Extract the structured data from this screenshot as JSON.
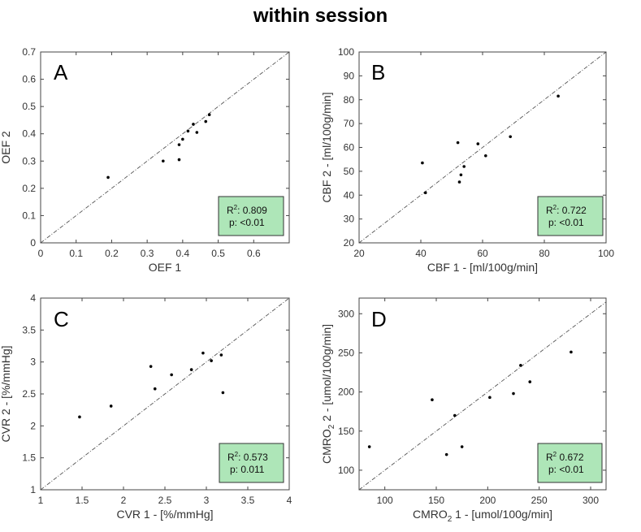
{
  "figure_title": "within session",
  "colors": {
    "annotation_fill": "#aee6b8",
    "point": "#000000",
    "identity_line": "#555555",
    "axis": "#444444",
    "text": "#333333"
  },
  "chart_data": [
    {
      "id": "A",
      "panel_label": "A",
      "type": "scatter",
      "title": "",
      "xlabel": "OEF 1",
      "ylabel": "OEF 2",
      "xlim": [
        0,
        0.7
      ],
      "ylim": [
        0,
        0.7
      ],
      "xticks": [
        0,
        0.1,
        0.2,
        0.3,
        0.4,
        0.5,
        0.6
      ],
      "yticks": [
        0,
        0.1,
        0.2,
        0.3,
        0.4,
        0.5,
        0.6,
        0.7
      ],
      "xtick_labels": [
        "0",
        "0.1",
        "0.2",
        "0.3",
        "0.4",
        "0.5",
        "0.6"
      ],
      "ytick_labels": [
        "0",
        "0.1",
        "0.2",
        "0.3",
        "0.4",
        "0.5",
        "0.6",
        "0.7"
      ],
      "identity_line": true,
      "x": [
        0.19,
        0.345,
        0.39,
        0.39,
        0.4,
        0.415,
        0.43,
        0.44,
        0.465,
        0.475
      ],
      "y": [
        0.24,
        0.3,
        0.305,
        0.36,
        0.38,
        0.41,
        0.435,
        0.405,
        0.445,
        0.47
      ],
      "annotation": {
        "r2_label": "R",
        "r2_sup": "2",
        "r2_value": ": 0.809",
        "p_text": "p: <0.01"
      }
    },
    {
      "id": "B",
      "panel_label": "B",
      "type": "scatter",
      "title": "",
      "xlabel": "CBF 1 - [ml/100g/min]",
      "ylabel": "CBF 2 - [ml/100g/min]",
      "xlim": [
        20,
        100
      ],
      "ylim": [
        20,
        100
      ],
      "xticks": [
        20,
        40,
        60,
        80,
        100
      ],
      "yticks": [
        20,
        30,
        40,
        50,
        60,
        70,
        80,
        90,
        100
      ],
      "xtick_labels": [
        "20",
        "40",
        "60",
        "80",
        "100"
      ],
      "ytick_labels": [
        "20",
        "30",
        "40",
        "50",
        "60",
        "70",
        "80",
        "90",
        "100"
      ],
      "identity_line": true,
      "x": [
        40.5,
        41.5,
        52,
        52.5,
        53,
        54,
        58.5,
        61,
        69,
        84.5
      ],
      "y": [
        53.5,
        41,
        62,
        45.5,
        48.5,
        52,
        61.5,
        56.5,
        64.5,
        81.5
      ],
      "annotation": {
        "r2_label": "R",
        "r2_sup": "2",
        "r2_value": ": 0.722",
        "p_text": "p: <0.01"
      }
    },
    {
      "id": "C",
      "panel_label": "C",
      "type": "scatter",
      "title": "",
      "xlabel": "CVR 1 - [%/mmHg]",
      "ylabel": "CVR 2 - [%/mmHg]",
      "xlim": [
        1,
        4
      ],
      "ylim": [
        1,
        4
      ],
      "xticks": [
        1,
        1.5,
        2,
        2.5,
        3,
        3.5,
        4
      ],
      "yticks": [
        1,
        1.5,
        2,
        2.5,
        3,
        3.5,
        4
      ],
      "xtick_labels": [
        "1",
        "1.5",
        "2",
        "2.5",
        "3",
        "3.5",
        "4"
      ],
      "ytick_labels": [
        "1",
        "1.5",
        "2",
        "2.5",
        "3",
        "3.5",
        "4"
      ],
      "identity_line": true,
      "x": [
        1.47,
        1.85,
        2.33,
        2.38,
        2.58,
        2.82,
        2.96,
        3.06,
        3.18,
        3.2
      ],
      "y": [
        2.14,
        2.31,
        2.93,
        2.58,
        2.8,
        2.88,
        3.14,
        3.02,
        3.11,
        2.52
      ],
      "annotation": {
        "r2_label": "R",
        "r2_sup": "2",
        "r2_value": ": 0.573",
        "p_text": "p: 0.011"
      }
    },
    {
      "id": "D",
      "panel_label": "D",
      "type": "scatter",
      "title": "",
      "xlabel_main": "CMRO",
      "xlabel_sub": "2",
      "xlabel_rest": " 1 - [umol/100g/min]",
      "ylabel_main": "CMRO",
      "ylabel_sub": "2",
      "ylabel_rest": " 2 -  [umol/100g/min]",
      "xlim": [
        75,
        315
      ],
      "ylim": [
        75,
        320
      ],
      "xticks": [
        100,
        150,
        200,
        250,
        300
      ],
      "yticks": [
        100,
        150,
        200,
        250,
        300
      ],
      "xtick_labels": [
        "100",
        "150",
        "200",
        "250",
        "300"
      ],
      "ytick_labels": [
        "100",
        "150",
        "200",
        "250",
        "300"
      ],
      "identity_line": true,
      "x": [
        85,
        146,
        160,
        168,
        175,
        202,
        225,
        232,
        241,
        281
      ],
      "y": [
        130,
        190,
        120,
        170,
        130,
        193,
        198,
        234,
        213,
        251
      ],
      "annotation": {
        "r2_label": "R",
        "r2_sup": "2",
        "r2_value": " 0.672",
        "p_text": "p: <0.01"
      }
    }
  ]
}
